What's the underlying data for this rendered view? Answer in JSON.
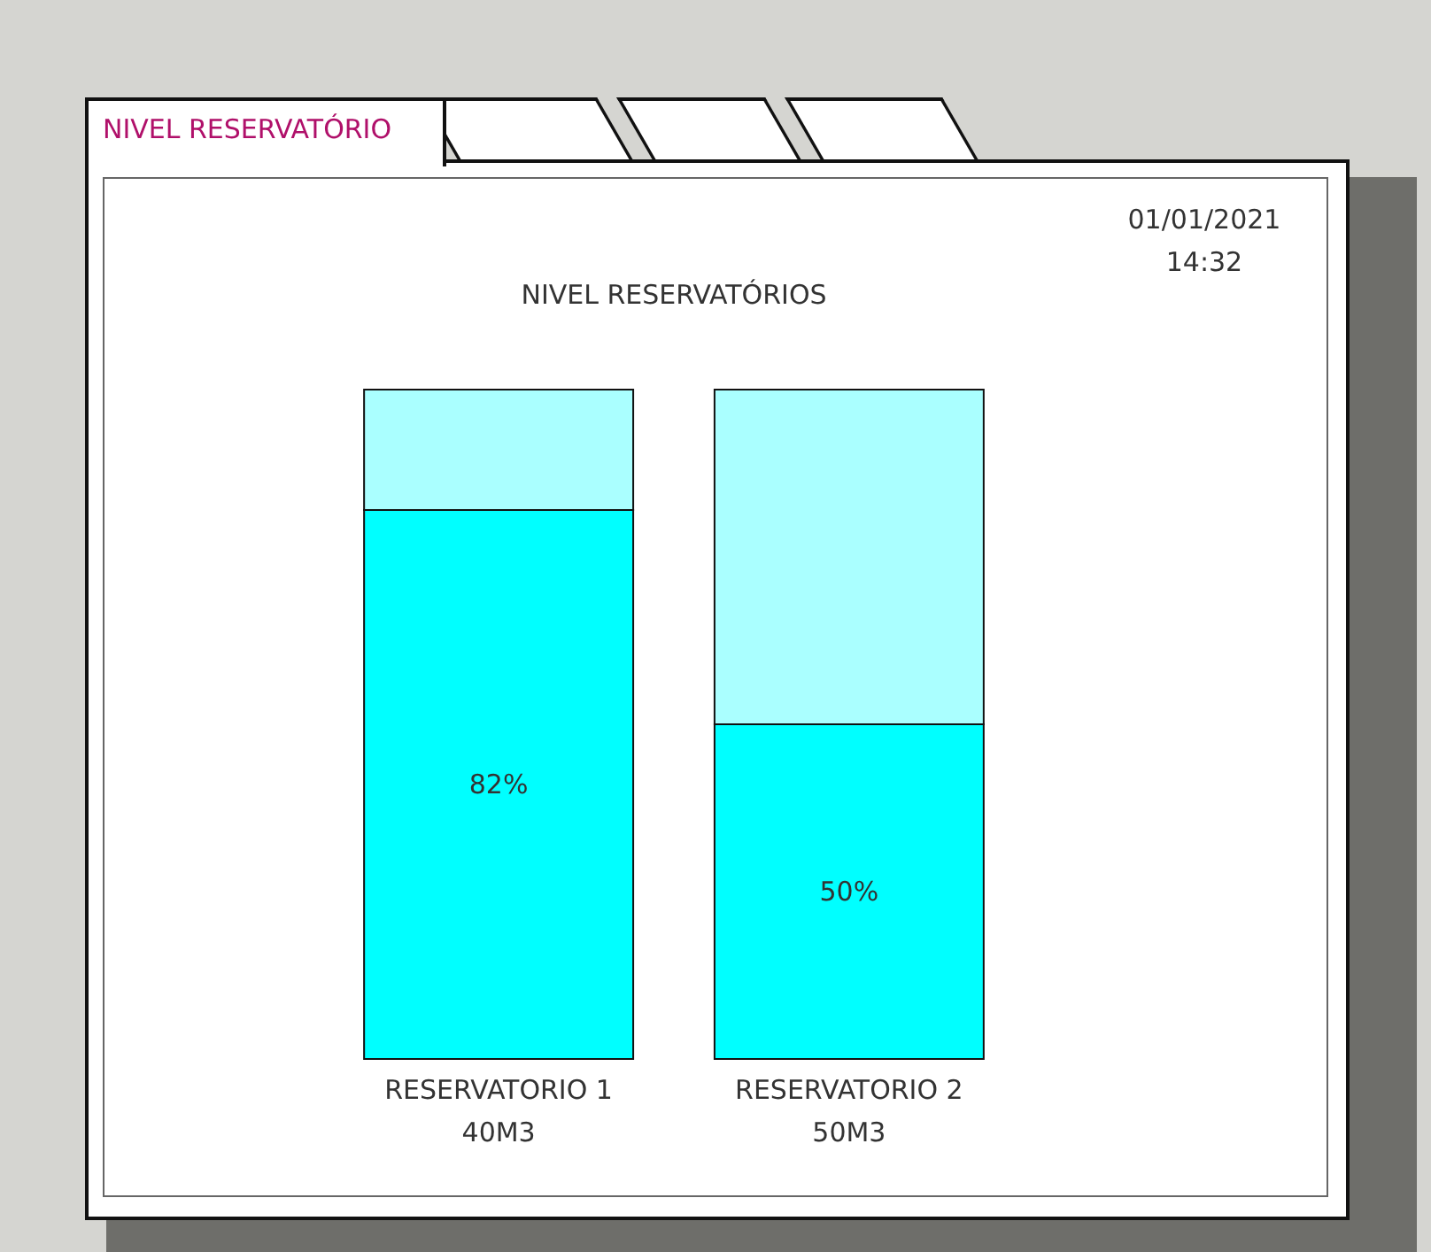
{
  "chart_data": {
    "type": "bar",
    "title": "NIVEL RESERVATÓRIOS",
    "categories": [
      "RESERVATORIO 1\n40M3",
      "RESERVATORIO 2\n50M3"
    ],
    "stacked": true,
    "ylim": [
      0,
      100
    ],
    "tick_labels": "x",
    "series": [
      {
        "color": "#00ffff",
        "values": [
          82,
          50
        ],
        "value_labels": [
          "82%",
          "50%"
        ]
      },
      {
        "color": "#aaffff",
        "values": [
          18,
          50
        ]
      }
    ],
    "annotations": [
      "NIVEL RESERVATÓRIO",
      "01/01/2021\n14:32"
    ]
  }
}
